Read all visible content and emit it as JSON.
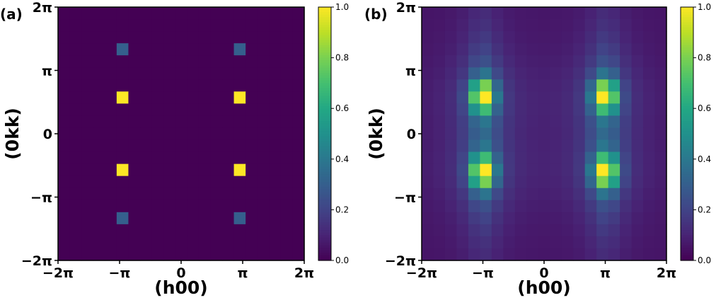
{
  "chart_data": [
    {
      "type": "heatmap",
      "panel_label": "(a)",
      "xlabel": "(h00)",
      "ylabel": "(0kk)",
      "x_ticks": [
        "−2π",
        "−π",
        "0",
        "π",
        "2π"
      ],
      "y_ticks": [
        "2π",
        "π",
        "0",
        "−π",
        "−2π"
      ],
      "xlim": [
        -6.2832,
        6.2832
      ],
      "ylim": [
        -6.2832,
        6.2832
      ],
      "colormap": "viridis",
      "vmin": 0,
      "vmax": 1,
      "colorbar_ticks": [
        "0.0",
        "0.2",
        "0.4",
        "0.6",
        "0.8",
        "1.0"
      ],
      "grid": 21,
      "description_values": "Peaks at (h,k) = (±π, ±0.6π) value 1.0 and (±π, ±1.4π) value 0.3; background 0",
      "peaks": [
        {
          "h": -3.1416,
          "k": 1.885,
          "value": 1.0
        },
        {
          "h": 3.1416,
          "k": 1.885,
          "value": 1.0
        },
        {
          "h": -3.1416,
          "k": -1.885,
          "value": 1.0
        },
        {
          "h": 3.1416,
          "k": -1.885,
          "value": 1.0
        },
        {
          "h": -3.1416,
          "k": 4.398,
          "value": 0.3
        },
        {
          "h": 3.1416,
          "k": 4.398,
          "value": 0.3
        },
        {
          "h": -3.1416,
          "k": -4.398,
          "value": 0.3
        },
        {
          "h": 3.1416,
          "k": -4.398,
          "value": 0.3
        }
      ]
    },
    {
      "type": "heatmap",
      "panel_label": "(b)",
      "xlabel": "(h00)",
      "ylabel": "(0kk)",
      "x_ticks": [
        "−2π",
        "−π",
        "0",
        "π",
        "2π"
      ],
      "y_ticks": [
        "2π",
        "π",
        "0",
        "−π",
        "−2π"
      ],
      "xlim": [
        -6.2832,
        6.2832
      ],
      "ylim": [
        -6.2832,
        6.2832
      ],
      "colormap": "viridis",
      "vmin": 0,
      "vmax": 1,
      "colorbar_ticks": [
        "0.0",
        "0.2",
        "0.4",
        "0.6",
        "0.8",
        "1.0"
      ],
      "grid": 21,
      "peaks": [
        {
          "h": -3.1416,
          "k": 1.885,
          "value": 1.0
        },
        {
          "h": 3.1416,
          "k": 1.885,
          "value": 1.0
        },
        {
          "h": -3.1416,
          "k": -1.885,
          "value": 1.0
        },
        {
          "h": 3.1416,
          "k": -1.885,
          "value": 1.0
        }
      ]
    }
  ]
}
